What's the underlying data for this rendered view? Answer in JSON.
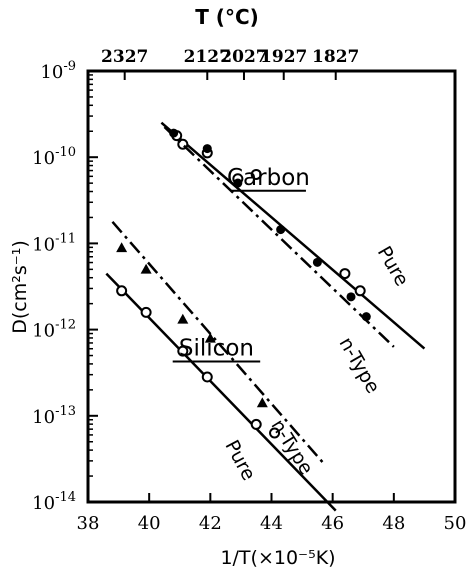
{
  "chart_data": {
    "type": "scatter",
    "xlabel": "1/T(×10⁻⁵K)",
    "ylabel": "D(cm²s⁻¹)",
    "top_axis_title": "T (°C)",
    "xlim": [
      38,
      50
    ],
    "ylim_log10": [
      -14,
      -9
    ],
    "scale_y": "log",
    "grid": false,
    "x_ticks": [
      38,
      40,
      42,
      44,
      46,
      48,
      50
    ],
    "x_tick_labels": [
      "38",
      "40",
      "42",
      "44",
      "46",
      "48",
      "50"
    ],
    "y_ticks_exp": [
      -14,
      -13,
      -12,
      -11,
      -10,
      -9
    ],
    "y_tick_labels": [
      {
        "base": "10",
        "exp": "-14"
      },
      {
        "base": "10",
        "exp": "-13"
      },
      {
        "base": "10",
        "exp": "-12"
      },
      {
        "base": "10",
        "exp": "-11"
      },
      {
        "base": "10",
        "exp": "-10"
      },
      {
        "base": "10",
        "exp": "-9"
      }
    ],
    "top_ticks": [
      {
        "x": 39.2,
        "label": "2327"
      },
      {
        "x": 41.9,
        "label": "2127"
      },
      {
        "x": 43.1,
        "label": "2027"
      },
      {
        "x": 44.4,
        "label": "1927"
      },
      {
        "x": 46.1,
        "label": "1827"
      }
    ],
    "annotations": [
      {
        "text": "Carbon",
        "x": 43.9,
        "y_exp": -10.32,
        "underline": true
      },
      {
        "text": "Silicon",
        "x": 42.2,
        "y_exp": -12.3,
        "underline": true
      },
      {
        "text": "Pure",
        "x": 47.8,
        "y_exp": -11.3,
        "rotate": 60
      },
      {
        "text": "n-Type",
        "x": 46.7,
        "y_exp": -12.45,
        "rotate": 60
      },
      {
        "text": "n-Type",
        "x": 44.5,
        "y_exp": -13.4,
        "rotate": 58
      },
      {
        "text": "Pure",
        "x": 42.8,
        "y_exp": -13.55,
        "rotate": 62
      }
    ],
    "series": [
      {
        "line_style": "solid",
        "line": [
          [
            40.4,
            -9.6
          ],
          [
            49.0,
            -12.22
          ]
        ],
        "marker": "open-circle",
        "points": [
          [
            40.9,
            -9.75
          ],
          [
            41.1,
            -9.85
          ],
          [
            41.9,
            -9.95
          ],
          [
            42.9,
            -10.25
          ],
          [
            43.5,
            -10.2
          ],
          [
            46.4,
            -11.35
          ],
          [
            46.9,
            -11.55
          ]
        ]
      },
      {
        "line_style": "dash-dot",
        "line": [
          [
            40.5,
            -9.65
          ],
          [
            48.0,
            -12.2
          ]
        ],
        "marker": "filled-circle",
        "points": [
          [
            40.8,
            -9.72
          ],
          [
            41.9,
            -9.9
          ],
          [
            42.9,
            -10.3
          ],
          [
            44.3,
            -10.84
          ],
          [
            45.5,
            -11.22
          ],
          [
            46.6,
            -11.62
          ],
          [
            47.1,
            -11.85
          ]
        ]
      },
      {
        "line_style": "dash-dot",
        "line": [
          [
            38.8,
            -10.75
          ],
          [
            45.7,
            -13.55
          ]
        ],
        "marker": "filled-triangle",
        "points": [
          [
            39.1,
            -11.05
          ],
          [
            39.9,
            -11.3
          ],
          [
            41.1,
            -11.88
          ],
          [
            42.0,
            -12.1
          ],
          [
            43.7,
            -12.85
          ]
        ]
      },
      {
        "line_style": "solid",
        "line": [
          [
            38.6,
            -11.35
          ],
          [
            46.1,
            -14.1
          ]
        ],
        "marker": "open-circle",
        "points": [
          [
            39.1,
            -11.55
          ],
          [
            39.9,
            -11.8
          ],
          [
            41.1,
            -12.25
          ],
          [
            41.9,
            -12.55
          ],
          [
            43.5,
            -13.1
          ],
          [
            44.1,
            -13.2
          ]
        ]
      }
    ]
  }
}
